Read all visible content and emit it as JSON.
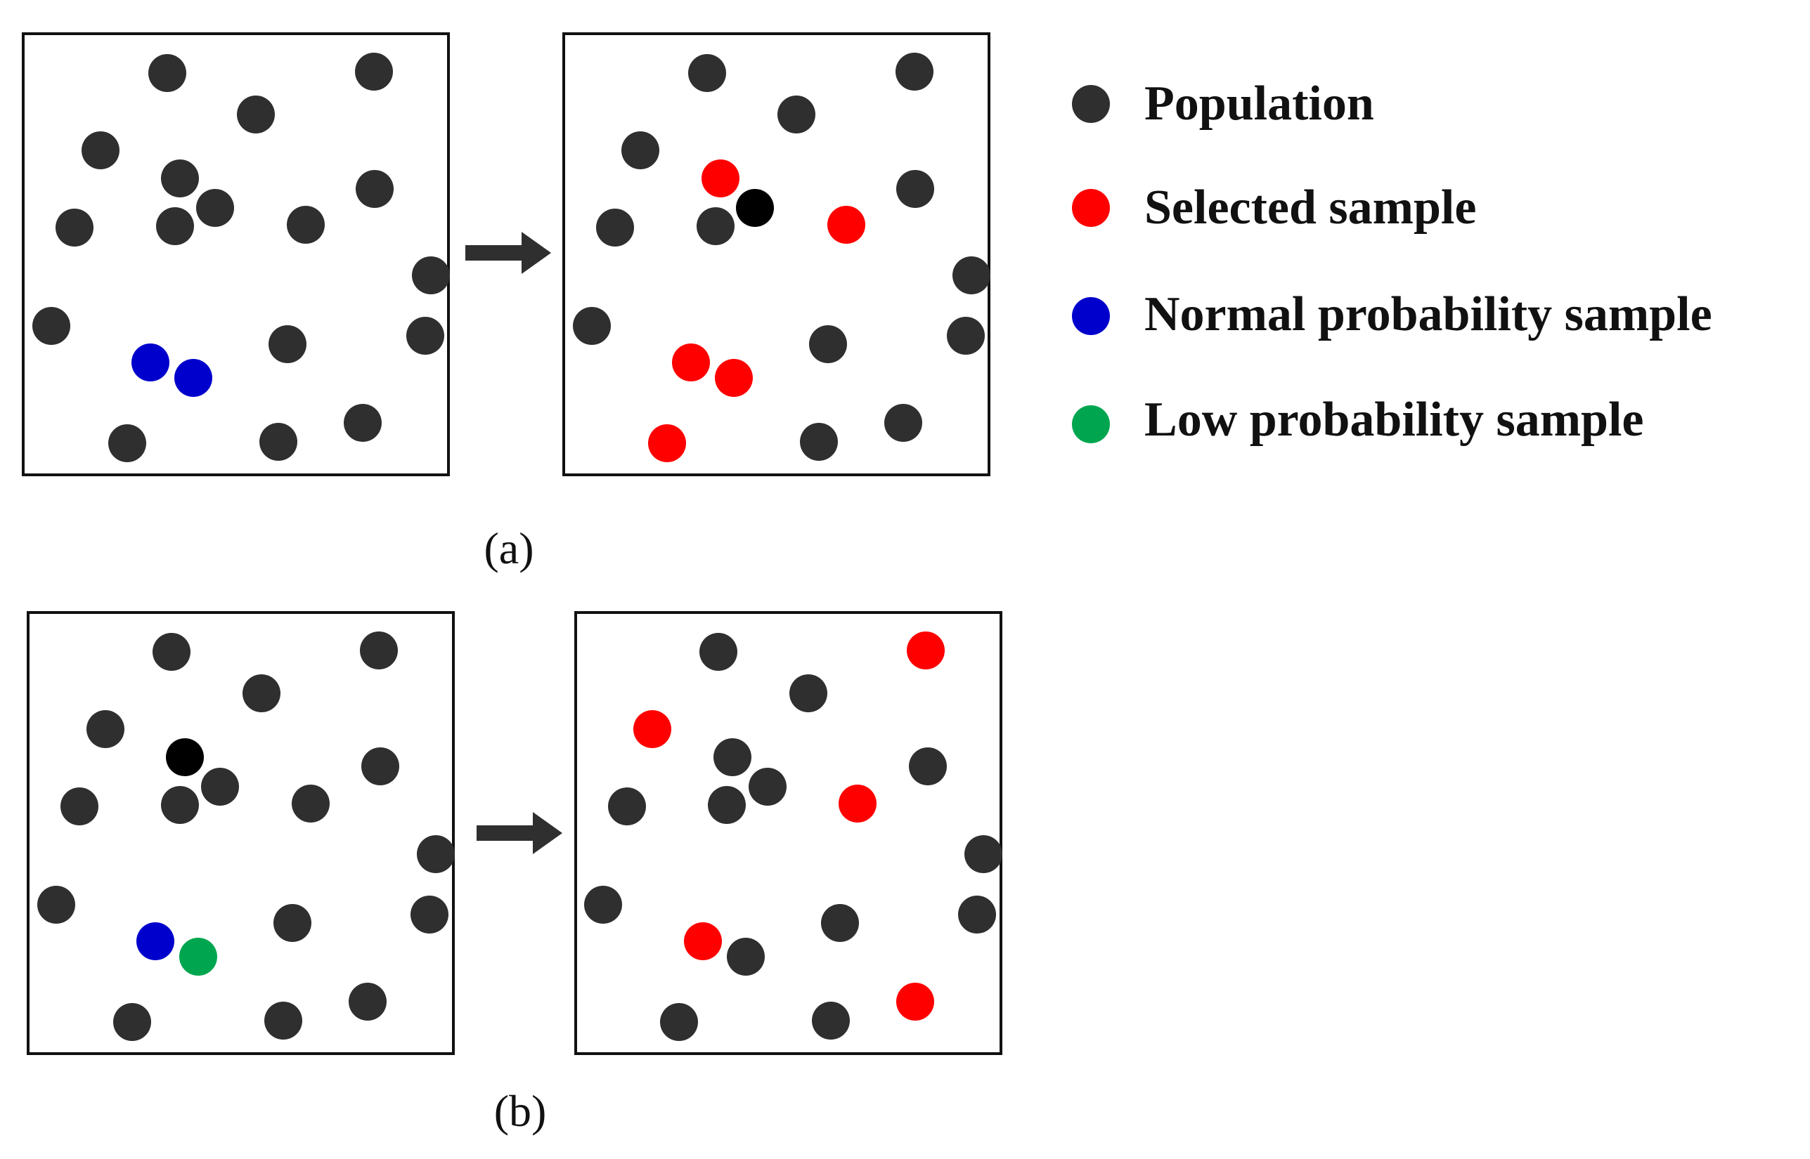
{
  "colors": {
    "population": "#2f2f2f",
    "highlight_black": "#000000",
    "selected": "#ff0000",
    "normal": "#0000cc",
    "low": "#00a64f",
    "frame": "#111111",
    "arrow": "#2f2f2f"
  },
  "legend": [
    {
      "key": "population",
      "label": "Population"
    },
    {
      "key": "selected",
      "label": "Selected sample"
    },
    {
      "key": "normal",
      "label": "Normal probability sample"
    },
    {
      "key": "low",
      "label": "Low probability sample"
    }
  ],
  "captions": {
    "a": "(a)",
    "b": "(b)"
  }
}
